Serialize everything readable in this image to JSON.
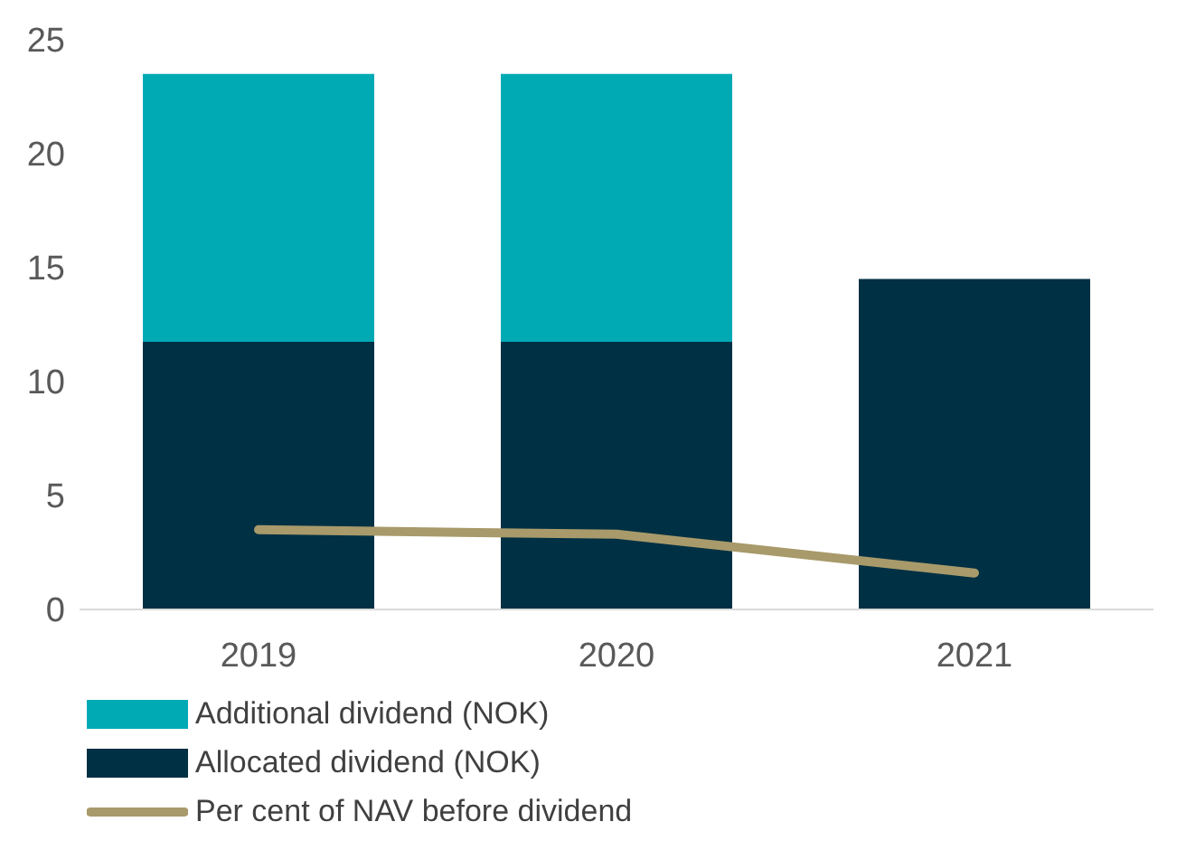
{
  "chart_data": {
    "type": "bar",
    "stacked": true,
    "categories": [
      "2019",
      "2020",
      "2021"
    ],
    "series": [
      {
        "name": "Allocated dividend (NOK)",
        "color": "#003044",
        "values": [
          11.75,
          11.75,
          14.5
        ]
      },
      {
        "name": "Additional dividend (NOK)",
        "color": "#00aab5",
        "values": [
          11.75,
          11.75,
          null
        ]
      },
      {
        "name": "Per cent of NAV before dividend",
        "type": "line",
        "color": "#a89a6a",
        "values": [
          3.5,
          3.3,
          1.6
        ]
      }
    ],
    "ylim": [
      0,
      25
    ],
    "yticks": [
      0,
      5,
      10,
      15,
      20,
      25
    ],
    "grid": false,
    "legend": "bottom",
    "marker": "none"
  }
}
